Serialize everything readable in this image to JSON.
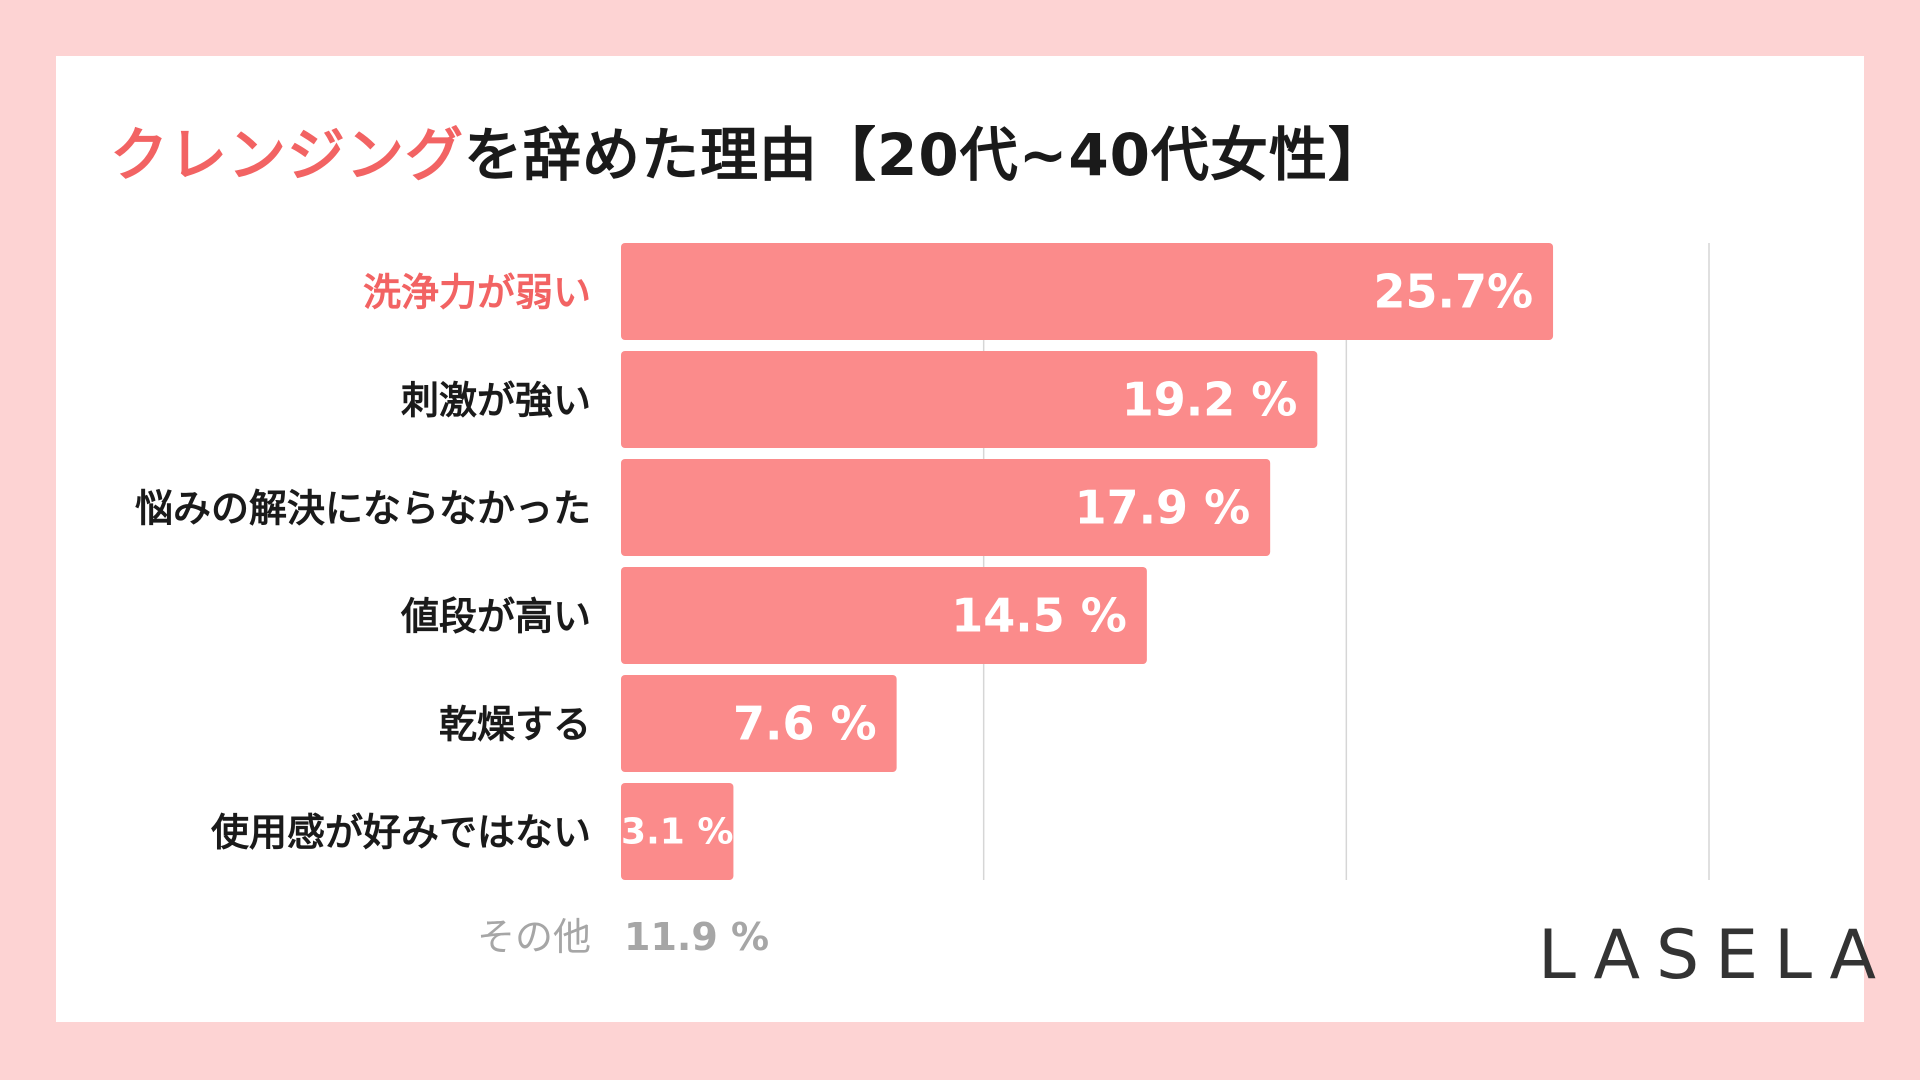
{
  "title": {
    "accent": "クレンジング",
    "rest": "を辞めた理由【20代~40代女性】"
  },
  "chart_data": {
    "type": "bar",
    "orientation": "horizontal",
    "title": "クレンジングを辞めた理由【20代~40代女性】",
    "categories": [
      "洗浄力が弱い",
      "刺激が強い",
      "悩みの解決にならなかった",
      "値段が高い",
      "乾燥する",
      "使用感が好みではない"
    ],
    "values": [
      25.7,
      19.2,
      17.9,
      14.5,
      7.6,
      3.1
    ],
    "value_labels": [
      "25.7%",
      "19.2 %",
      "17.9 %",
      "14.5 %",
      "7.6 %",
      "3.1 %"
    ],
    "xlim": [
      0,
      30
    ],
    "gridlines": [
      10,
      20,
      30
    ],
    "highlight_index": 0,
    "other": {
      "label": "その他",
      "value_label": "11.9 %"
    }
  },
  "colors": {
    "bar": "#fb8b8b",
    "accent": "#f26363",
    "text": "#1a1a1a",
    "muted": "#a6a6a6",
    "grid": "#d6d6d6",
    "background": "#fdd3d3"
  },
  "logo": "LASELA"
}
